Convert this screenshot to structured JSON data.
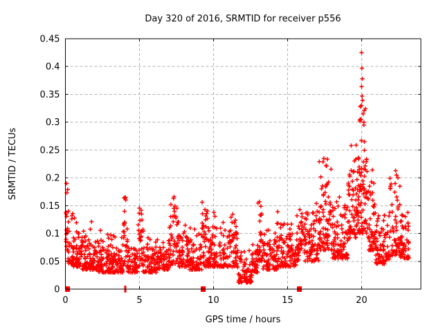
{
  "window": {
    "background": "#ffffff"
  },
  "chart_data": {
    "type": "scatter",
    "title": "Day 320 of 2016, SRMTID for receiver p556",
    "xlabel": "GPS time / hours",
    "ylabel": "SRMTID / TECUs",
    "xlim": [
      0,
      24
    ],
    "ylim": [
      0,
      0.45
    ],
    "xticks": [
      [
        0,
        "0"
      ],
      [
        5,
        "5"
      ],
      [
        10,
        "10"
      ],
      [
        15,
        "15"
      ],
      [
        20,
        "20"
      ]
    ],
    "yticks": [
      [
        0,
        "0"
      ],
      [
        0.05,
        "0.05"
      ],
      [
        0.1,
        "0.1"
      ],
      [
        0.15,
        "0.15"
      ],
      [
        0.2,
        "0.2"
      ],
      [
        0.25,
        "0.25"
      ],
      [
        0.3,
        "0.3"
      ],
      [
        0.35,
        "0.35"
      ],
      [
        0.4,
        "0.4"
      ],
      [
        0.45,
        "0.45"
      ]
    ],
    "grid": true,
    "grid_style": "dashed",
    "grid_color": "#b0b0b0",
    "axis_color": "#000000",
    "marker": "plus",
    "marker_color": "#ff0000",
    "seed": 320,
    "spike_probability": 0.06,
    "envelope_segments_comment": "each segment: [hourStart, hourEnd, bandLow, bandHigh, pointCount, spikeMaxOrNull] read from the plot's density bands",
    "envelope": [
      [
        0.02,
        0.18,
        0.07,
        0.19,
        14,
        null
      ],
      [
        0.18,
        0.55,
        0.045,
        0.145,
        34,
        null
      ],
      [
        0.55,
        1.05,
        0.04,
        0.105,
        48,
        0.13
      ],
      [
        1.05,
        1.65,
        0.035,
        0.09,
        50,
        0.115
      ],
      [
        1.65,
        2.1,
        0.035,
        0.085,
        42,
        0.13
      ],
      [
        2.1,
        3.0,
        0.03,
        0.078,
        78,
        0.11
      ],
      [
        3.0,
        3.9,
        0.03,
        0.08,
        76,
        0.1
      ],
      [
        3.9,
        4.2,
        0.04,
        0.155,
        26,
        0.168
      ],
      [
        4.2,
        4.9,
        0.03,
        0.075,
        56,
        null
      ],
      [
        4.9,
        5.25,
        0.04,
        0.135,
        30,
        0.152
      ],
      [
        5.25,
        6.3,
        0.03,
        0.075,
        82,
        0.095
      ],
      [
        6.3,
        7.1,
        0.035,
        0.09,
        64,
        0.12
      ],
      [
        7.1,
        7.6,
        0.045,
        0.15,
        40,
        0.168
      ],
      [
        7.6,
        8.3,
        0.04,
        0.1,
        56,
        0.13
      ],
      [
        8.3,
        9.2,
        0.035,
        0.09,
        70,
        0.12
      ],
      [
        9.2,
        9.6,
        0.04,
        0.145,
        34,
        0.158
      ],
      [
        9.6,
        10.8,
        0.04,
        0.115,
        96,
        0.14
      ],
      [
        10.8,
        11.6,
        0.04,
        0.105,
        64,
        0.135
      ],
      [
        11.6,
        12.6,
        0.012,
        0.055,
        78,
        0.07
      ],
      [
        12.6,
        13.0,
        0.03,
        0.08,
        34,
        null
      ],
      [
        13.0,
        13.3,
        0.05,
        0.15,
        24,
        0.16
      ],
      [
        13.3,
        14.3,
        0.035,
        0.09,
        76,
        0.12
      ],
      [
        14.3,
        14.7,
        0.04,
        0.13,
        30,
        0.145
      ],
      [
        14.7,
        15.6,
        0.04,
        0.1,
        66,
        0.12
      ],
      [
        15.6,
        16.1,
        0.05,
        0.125,
        40,
        0.148
      ],
      [
        16.1,
        17.1,
        0.05,
        0.14,
        86,
        0.16
      ],
      [
        17.1,
        18.0,
        0.07,
        0.2,
        80,
        0.235
      ],
      [
        18.0,
        19.1,
        0.055,
        0.15,
        92,
        0.17
      ],
      [
        19.1,
        19.7,
        0.09,
        0.22,
        60,
        0.26
      ],
      [
        19.7,
        20.35,
        0.1,
        0.29,
        78,
        0.345
      ],
      [
        20.35,
        20.9,
        0.07,
        0.185,
        52,
        0.22
      ],
      [
        20.9,
        21.9,
        0.045,
        0.115,
        80,
        0.14
      ],
      [
        21.9,
        22.6,
        0.06,
        0.195,
        56,
        0.215
      ],
      [
        22.6,
        23.2,
        0.055,
        0.125,
        56,
        0.148
      ]
    ],
    "extreme_points_comment": "notable individual points read off the plot: [hour, SRMTID]",
    "extreme_points": [
      [
        0.08,
        0.19
      ],
      [
        0.1,
        0.173
      ],
      [
        4.05,
        0.165
      ],
      [
        7.3,
        0.163
      ],
      [
        13.1,
        0.157
      ],
      [
        17.45,
        0.235
      ],
      [
        17.6,
        0.222
      ],
      [
        19.3,
        0.258
      ],
      [
        19.95,
        0.305
      ],
      [
        19.98,
        0.33
      ],
      [
        20.0,
        0.425
      ],
      [
        20.02,
        0.397
      ],
      [
        20.05,
        0.378
      ],
      [
        20.0,
        0.364
      ],
      [
        20.03,
        0.347
      ],
      [
        20.1,
        0.315
      ],
      [
        20.15,
        0.295
      ],
      [
        22.3,
        0.213
      ],
      [
        22.35,
        0.205
      ]
    ],
    "axis_markers_comment": "red marks sitting on the x-axis at y=0",
    "axis_markers": [
      {
        "hour": 0.15,
        "shape": "square"
      },
      {
        "hour": 4.05,
        "shape": "tick"
      },
      {
        "hour": 9.3,
        "shape": "square"
      },
      {
        "hour": 15.8,
        "shape": "square"
      }
    ]
  }
}
